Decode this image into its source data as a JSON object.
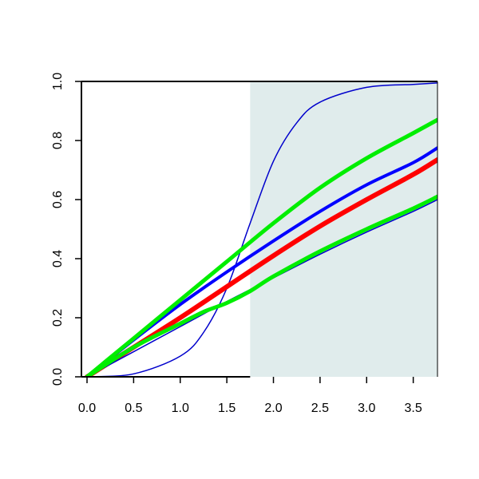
{
  "chart_data": {
    "type": "line",
    "title": "",
    "xlabel": "",
    "ylabel": "",
    "xlim": [
      -0.06,
      3.76
    ],
    "ylim": [
      0.0,
      1.0
    ],
    "x_ticks": [
      0.0,
      0.5,
      1.0,
      1.5,
      2.0,
      2.5,
      3.0,
      3.5
    ],
    "x_tick_labels": [
      "0.0",
      "0.5",
      "1.0",
      "1.5",
      "2.0",
      "2.5",
      "3.0",
      "3.5"
    ],
    "y_ticks": [
      0.0,
      0.2,
      0.4,
      0.6,
      0.8,
      1.0
    ],
    "y_tick_labels": [
      "0.0",
      "0.2",
      "0.4",
      "0.6",
      "0.8",
      "1.0"
    ],
    "grid": false,
    "shaded_region": {
      "x_from": 1.75,
      "x_to": 3.76,
      "color": "#e0ecec"
    },
    "series": [
      {
        "color": "#0000cc",
        "width": 1.5,
        "x": [
          0,
          0.5,
          1.0,
          1.25,
          1.5,
          1.75,
          2.0,
          2.25,
          2.5,
          3.0,
          3.5,
          3.76
        ],
        "y": [
          0.0,
          0.01,
          0.07,
          0.15,
          0.3,
          0.52,
          0.73,
          0.86,
          0.93,
          0.98,
          0.99,
          0.995
        ]
      },
      {
        "color": "#0000ff",
        "width": 4,
        "x": [
          0,
          0.5,
          1.0,
          1.5,
          2.0,
          2.5,
          3.0,
          3.5,
          3.76
        ],
        "y": [
          0.0,
          0.125,
          0.245,
          0.355,
          0.46,
          0.56,
          0.65,
          0.725,
          0.775
        ]
      },
      {
        "color": "#ff0000",
        "width": 6,
        "x": [
          0,
          0.5,
          1.0,
          1.5,
          2.0,
          2.5,
          3.0,
          3.5,
          3.76
        ],
        "y": [
          0.0,
          0.1,
          0.2,
          0.305,
          0.41,
          0.51,
          0.6,
          0.685,
          0.735
        ]
      },
      {
        "color": "#0000cc",
        "width": 1.5,
        "x": [
          0,
          0.5,
          1.0,
          1.5,
          2.0,
          2.5,
          3.0,
          3.5,
          3.76
        ],
        "y": [
          0.0,
          0.085,
          0.17,
          0.255,
          0.335,
          0.415,
          0.49,
          0.56,
          0.6
        ]
      },
      {
        "color": "#00ee00",
        "width": 5,
        "x": [
          0,
          0.5,
          1.0,
          1.5,
          2.0,
          2.5,
          3.0,
          3.5,
          3.76
        ],
        "y": [
          0.0,
          0.13,
          0.26,
          0.39,
          0.52,
          0.64,
          0.74,
          0.825,
          0.87
        ]
      },
      {
        "color": "#00ee00",
        "width": 5,
        "x": [
          0,
          0.5,
          1.0,
          1.25,
          1.5,
          1.75,
          2.0,
          2.5,
          3.0,
          3.5,
          3.76
        ],
        "y": [
          0.0,
          0.1,
          0.18,
          0.22,
          0.25,
          0.29,
          0.34,
          0.425,
          0.5,
          0.57,
          0.61
        ]
      }
    ]
  }
}
